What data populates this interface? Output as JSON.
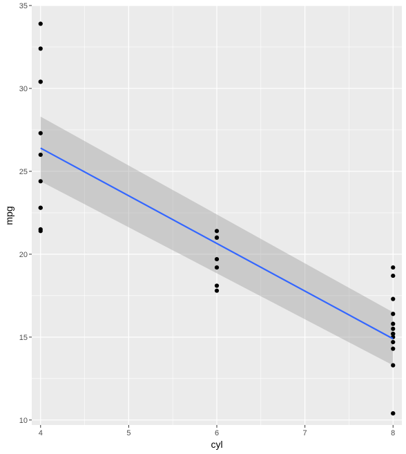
{
  "chart_data": {
    "type": "scatter",
    "xlabel": "cyl",
    "ylabel": "mpg",
    "xlim": [
      3.9,
      8.1
    ],
    "ylim": [
      9.7,
      35.0
    ],
    "x_ticks": [
      4,
      5,
      6,
      7,
      8
    ],
    "x_tick_labels": [
      "4",
      "5",
      "6",
      "7",
      "8"
    ],
    "y_ticks": [
      10,
      15,
      20,
      25,
      30,
      35
    ],
    "y_tick_labels": [
      "10",
      "15",
      "20",
      "25",
      "30",
      "35"
    ],
    "grid": true,
    "legend": "none",
    "points": [
      {
        "x": 4,
        "y": 33.9
      },
      {
        "x": 4,
        "y": 32.4
      },
      {
        "x": 4,
        "y": 30.4
      },
      {
        "x": 4,
        "y": 30.4
      },
      {
        "x": 4,
        "y": 27.3
      },
      {
        "x": 4,
        "y": 26.0
      },
      {
        "x": 4,
        "y": 24.4
      },
      {
        "x": 4,
        "y": 22.8
      },
      {
        "x": 4,
        "y": 22.8
      },
      {
        "x": 4,
        "y": 21.5
      },
      {
        "x": 4,
        "y": 21.4
      },
      {
        "x": 6,
        "y": 21.4
      },
      {
        "x": 6,
        "y": 21.0
      },
      {
        "x": 6,
        "y": 21.0
      },
      {
        "x": 6,
        "y": 19.7
      },
      {
        "x": 6,
        "y": 19.2
      },
      {
        "x": 6,
        "y": 18.1
      },
      {
        "x": 6,
        "y": 17.8
      },
      {
        "x": 8,
        "y": 19.2
      },
      {
        "x": 8,
        "y": 18.7
      },
      {
        "x": 8,
        "y": 17.3
      },
      {
        "x": 8,
        "y": 16.4
      },
      {
        "x": 8,
        "y": 15.8
      },
      {
        "x": 8,
        "y": 15.5
      },
      {
        "x": 8,
        "y": 15.2
      },
      {
        "x": 8,
        "y": 15.2
      },
      {
        "x": 8,
        "y": 15.0
      },
      {
        "x": 8,
        "y": 14.7
      },
      {
        "x": 8,
        "y": 14.3
      },
      {
        "x": 8,
        "y": 13.3
      },
      {
        "x": 8,
        "y": 10.4
      },
      {
        "x": 8,
        "y": 10.4
      }
    ],
    "fit": {
      "method": "linear",
      "x": [
        4,
        8
      ],
      "y": [
        26.4,
        14.9
      ],
      "ci_lower": [
        24.4,
        13.3
      ],
      "ci_upper": [
        28.3,
        16.5
      ]
    },
    "colors": {
      "panel": "#ebebeb",
      "grid": "#ffffff",
      "point": "#000000",
      "line": "#3366ff",
      "band": "#999999"
    }
  }
}
